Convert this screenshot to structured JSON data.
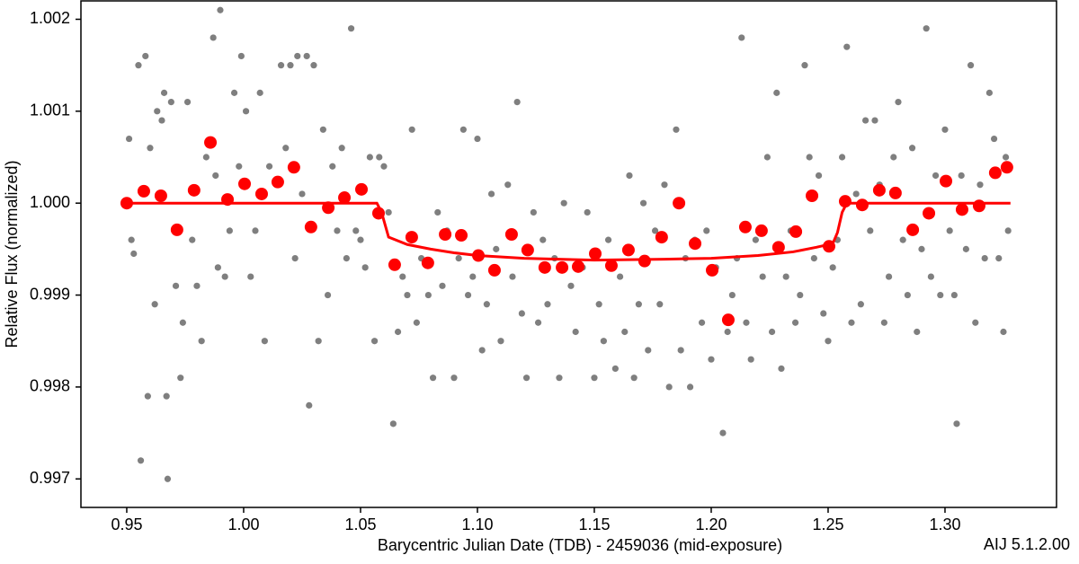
{
  "chart_data": {
    "type": "scatter",
    "xlabel": "Barycentric Julian Date (TDB) - 2459036 (mid-exposure)",
    "ylabel": "Relative Flux (normalized)",
    "annotation": "AIJ 5.1.2.00",
    "xlim": [
      0.9304,
      1.3477
    ],
    "ylim": [
      0.99669,
      1.0022
    ],
    "xticks": [
      0.95,
      {
        "value": 1.0,
        "label": "1.00"
      },
      1.05,
      {
        "value": 1.1,
        "label": "1.10"
      },
      1.15,
      {
        "value": 1.2,
        "label": "1.20"
      },
      1.25,
      {
        "value": 1.3,
        "label": "1.30"
      }
    ],
    "yticks": [
      0.997,
      0.998,
      0.999,
      {
        "value": 1.0,
        "label": "1.000"
      },
      1.001,
      1.002
    ],
    "grid": false,
    "series": [
      {
        "type": "scatter",
        "color": "#7f7f7f",
        "x": [
          0.951,
          0.952,
          0.953,
          0.955,
          0.956,
          0.958,
          0.959,
          0.96,
          0.962,
          0.963,
          0.965,
          0.966,
          0.967,
          0.9675,
          0.969,
          0.971,
          0.973,
          0.974,
          0.976,
          0.978,
          0.98,
          0.982,
          0.984,
          0.987,
          0.988,
          0.989,
          0.99,
          0.992,
          0.994,
          0.996,
          0.998,
          0.999,
          1.001,
          1.003,
          1.005,
          1.007,
          1.009,
          1.011,
          1.014,
          1.016,
          1.018,
          1.02,
          1.022,
          1.023,
          1.025,
          1.027,
          1.028,
          1.03,
          1.032,
          1.034,
          1.036,
          1.038,
          1.04,
          1.042,
          1.044,
          1.046,
          1.048,
          1.05,
          1.052,
          1.054,
          1.056,
          1.058,
          1.06,
          1.062,
          1.064,
          1.066,
          1.068,
          1.07,
          1.072,
          1.074,
          1.076,
          1.079,
          1.081,
          1.083,
          1.085,
          1.087,
          1.09,
          1.092,
          1.094,
          1.096,
          1.098,
          1.1,
          1.102,
          1.104,
          1.106,
          1.108,
          1.11,
          1.113,
          1.115,
          1.117,
          1.119,
          1.121,
          1.124,
          1.126,
          1.128,
          1.13,
          1.133,
          1.135,
          1.137,
          1.14,
          1.142,
          1.145,
          1.147,
          1.15,
          1.152,
          1.154,
          1.156,
          1.159,
          1.161,
          1.163,
          1.165,
          1.167,
          1.169,
          1.171,
          1.173,
          1.176,
          1.178,
          1.18,
          1.182,
          1.185,
          1.187,
          1.189,
          1.191,
          1.193,
          1.196,
          1.198,
          1.2,
          1.202,
          1.205,
          1.207,
          1.209,
          1.211,
          1.213,
          1.215,
          1.217,
          1.219,
          1.222,
          1.224,
          1.226,
          1.228,
          1.23,
          1.232,
          1.234,
          1.236,
          1.238,
          1.24,
          1.242,
          1.244,
          1.246,
          1.248,
          1.25,
          1.252,
          1.254,
          1.256,
          1.258,
          1.26,
          1.262,
          1.264,
          1.266,
          1.268,
          1.27,
          1.272,
          1.274,
          1.276,
          1.278,
          1.28,
          1.282,
          1.284,
          1.286,
          1.288,
          1.29,
          1.292,
          1.294,
          1.296,
          1.298,
          1.3,
          1.302,
          1.304,
          1.305,
          1.307,
          1.309,
          1.311,
          1.313,
          1.315,
          1.317,
          1.319,
          1.321,
          1.323,
          1.325,
          1.326,
          1.327
        ],
        "values": [
          1.0007,
          0.9996,
          0.99945,
          1.0015,
          0.9972,
          1.0016,
          0.9979,
          1.0006,
          0.9989,
          1.001,
          1.0009,
          1.0012,
          0.9979,
          0.997,
          1.0011,
          0.9991,
          0.9981,
          0.9987,
          1.0011,
          0.9996,
          0.9991,
          0.9985,
          1.0005,
          1.0018,
          1.0003,
          0.9993,
          1.0021,
          0.9992,
          0.9997,
          1.0012,
          1.0004,
          1.0016,
          1.001,
          0.9992,
          0.9997,
          1.0012,
          0.9985,
          1.0004,
          1.0002,
          1.0015,
          1.0006,
          1.0015,
          0.9994,
          1.0016,
          1.0001,
          1.0016,
          0.9978,
          1.0015,
          0.9985,
          1.0008,
          0.999,
          1.0004,
          0.9997,
          1.0006,
          0.9994,
          1.0019,
          0.9997,
          0.9996,
          0.9993,
          1.0005,
          0.9985,
          1.0005,
          1.0004,
          0.9999,
          0.9976,
          0.9986,
          0.9992,
          0.999,
          1.0008,
          0.9987,
          0.9994,
          0.999,
          0.9981,
          0.9999,
          0.9991,
          0.9997,
          0.9981,
          0.9994,
          1.0008,
          0.999,
          0.9992,
          1.0007,
          0.9984,
          0.9989,
          1.0001,
          0.9995,
          0.9985,
          1.0002,
          0.9992,
          1.0011,
          0.9988,
          0.9981,
          0.9999,
          0.9987,
          0.9996,
          0.9989,
          0.9994,
          0.9981,
          1.0,
          0.9991,
          0.9986,
          0.9993,
          0.9999,
          0.9981,
          0.9989,
          0.9985,
          0.9996,
          0.9982,
          0.9992,
          0.9986,
          1.0003,
          0.9981,
          0.9989,
          1.0,
          0.9984,
          0.9997,
          0.9989,
          1.0002,
          0.998,
          1.0008,
          0.9984,
          0.9994,
          0.998,
          0.9996,
          0.9987,
          0.9997,
          0.9983,
          0.9993,
          0.9975,
          0.9986,
          0.999,
          0.9994,
          1.0018,
          0.9987,
          0.9983,
          0.9996,
          0.9992,
          1.0005,
          0.9986,
          1.0012,
          0.9982,
          0.9992,
          0.9997,
          0.9987,
          0.999,
          1.0015,
          1.0005,
          0.9994,
          1.0003,
          0.9988,
          0.9985,
          0.9993,
          0.9996,
          1.0005,
          1.0017,
          0.9987,
          1.0001,
          0.9989,
          1.0009,
          0.9997,
          1.0009,
          1.0002,
          0.9987,
          0.9992,
          1.0005,
          1.0011,
          0.9996,
          0.999,
          1.0006,
          0.9986,
          0.9995,
          1.0019,
          0.9992,
          1.0003,
          0.999,
          1.0008,
          0.9997,
          0.999,
          0.9976,
          1.0003,
          0.9995,
          1.0015,
          0.9987,
          1.0002,
          0.9994,
          1.0012,
          1.0007,
          0.9994,
          0.9986,
          1.0005,
          0.9997
        ]
      },
      {
        "type": "scatter",
        "color": "#ff0000",
        "x": [
          0.95,
          0.9573,
          0.9646,
          0.9715,
          0.9788,
          0.9858,
          0.9931,
          1.0004,
          1.0077,
          1.0146,
          1.0215,
          1.0288,
          1.0362,
          1.0431,
          1.0504,
          1.0577,
          1.0646,
          1.0719,
          1.0788,
          1.0862,
          1.0931,
          1.1004,
          1.1073,
          1.1146,
          1.1215,
          1.1288,
          1.1362,
          1.1431,
          1.1504,
          1.1573,
          1.1646,
          1.1715,
          1.1788,
          1.1862,
          1.1931,
          1.2004,
          1.2073,
          1.2146,
          1.2215,
          1.2288,
          1.2362,
          1.2431,
          1.2504,
          1.2573,
          1.2646,
          1.2719,
          1.2788,
          1.2862,
          1.2931,
          1.3004,
          1.3073,
          1.3146,
          1.3215,
          1.3265
        ],
        "values": [
          1.0,
          1.00013,
          1.00008,
          0.99971,
          1.00014,
          1.00066,
          1.00004,
          1.00021,
          1.0001,
          1.00023,
          1.00039,
          0.99974,
          0.99995,
          1.00006,
          1.00015,
          0.99989,
          0.99933,
          0.99963,
          0.99935,
          0.99966,
          0.99965,
          0.99943,
          0.99927,
          0.99966,
          0.99949,
          0.9993,
          0.9993,
          0.99931,
          0.99945,
          0.99932,
          0.99949,
          0.99937,
          0.99963,
          1.0,
          0.99956,
          0.99927,
          0.99873,
          0.99974,
          0.9997,
          0.99952,
          0.99969,
          1.00008,
          0.99953,
          1.00002,
          0.99998,
          1.00014,
          1.00011,
          0.99971,
          0.99989,
          1.00024,
          0.99993,
          0.99997,
          1.00033,
          1.00039
        ]
      },
      {
        "type": "line",
        "color": "#ff0000",
        "x": [
          0.95,
          1.057,
          1.059,
          1.062,
          1.07,
          1.08,
          1.09,
          1.1,
          1.12,
          1.15,
          1.18,
          1.2,
          1.22,
          1.235,
          1.245,
          1.252,
          1.254,
          1.256,
          1.258,
          1.328
        ],
        "values": [
          1.0,
          1.0,
          0.9999,
          0.99963,
          0.99955,
          0.9995,
          0.99946,
          0.99943,
          0.9994,
          0.99938,
          0.99939,
          0.9994,
          0.99943,
          0.99947,
          0.99952,
          0.99956,
          0.99968,
          0.9999,
          1.0,
          1.0
        ]
      }
    ]
  }
}
